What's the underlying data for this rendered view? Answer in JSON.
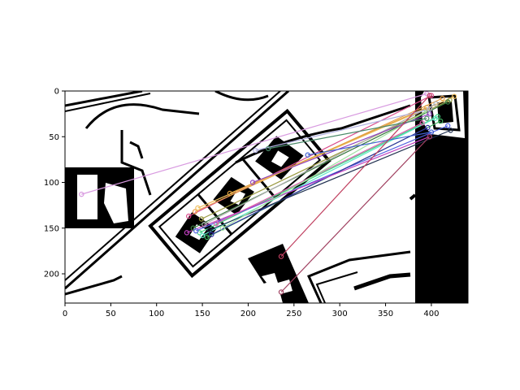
{
  "chart_data": {
    "type": "scatter",
    "title": "",
    "xlabel": "",
    "ylabel": "",
    "xlim": [
      0,
      440
    ],
    "ylim": [
      232,
      0
    ],
    "grid": false,
    "legend": "none",
    "x_ticks": [
      0,
      50,
      100,
      150,
      200,
      250,
      300,
      350,
      400
    ],
    "y_ticks": [
      0,
      50,
      100,
      150,
      200
    ],
    "x_tick_labels": [
      "0",
      "50",
      "100",
      "150",
      "200",
      "250",
      "300",
      "350",
      "400"
    ],
    "y_tick_labels": [
      "0",
      "50",
      "100",
      "150",
      "200"
    ],
    "background_image": "binary black-and-white floor plan segment (left) matched against a small rotated crop (right)",
    "matches": [
      {
        "x1": 18,
        "y1": 113,
        "x2": 395,
        "y2": 3,
        "color": "#d89ae0"
      },
      {
        "x1": 135,
        "y1": 137,
        "x2": 400,
        "y2": 5,
        "color": "#d94c8c"
      },
      {
        "x1": 142,
        "y1": 132,
        "x2": 412,
        "y2": 8,
        "color": "#e7a04a"
      },
      {
        "x1": 145,
        "y1": 128,
        "x2": 425,
        "y2": 6,
        "color": "#f0c060"
      },
      {
        "x1": 149,
        "y1": 140,
        "x2": 420,
        "y2": 10,
        "color": "#9a9a40"
      },
      {
        "x1": 140,
        "y1": 150,
        "x2": 418,
        "y2": 12,
        "color": "#3a7a40"
      },
      {
        "x1": 152,
        "y1": 146,
        "x2": 405,
        "y2": 14,
        "color": "#b0b0b0"
      },
      {
        "x1": 147,
        "y1": 155,
        "x2": 407,
        "y2": 28,
        "color": "#40d080"
      },
      {
        "x1": 150,
        "y1": 158,
        "x2": 404,
        "y2": 30,
        "color": "#60e8c8"
      },
      {
        "x1": 155,
        "y1": 160,
        "x2": 410,
        "y2": 33,
        "color": "#40b060"
      },
      {
        "x1": 143,
        "y1": 153,
        "x2": 418,
        "y2": 38,
        "color": "#5060e0"
      },
      {
        "x1": 160,
        "y1": 157,
        "x2": 396,
        "y2": 40,
        "color": "#3030a0"
      },
      {
        "x1": 158,
        "y1": 152,
        "x2": 421,
        "y2": 43,
        "color": "#203050"
      },
      {
        "x1": 133,
        "y1": 155,
        "x2": 398,
        "y2": 50,
        "color": "#c040c0"
      },
      {
        "x1": 165,
        "y1": 145,
        "x2": 390,
        "y2": 35,
        "color": "#e060b0"
      },
      {
        "x1": 172,
        "y1": 150,
        "x2": 395,
        "y2": 22,
        "color": "#a0e0a0"
      },
      {
        "x1": 180,
        "y1": 112,
        "x2": 395,
        "y2": 18,
        "color": "#e0a040"
      },
      {
        "x1": 205,
        "y1": 100,
        "x2": 398,
        "y2": 25,
        "color": "#9040c0"
      },
      {
        "x1": 208,
        "y1": 65,
        "x2": 398,
        "y2": 20,
        "color": "#b0b0e0"
      },
      {
        "x1": 222,
        "y1": 63,
        "x2": 395,
        "y2": 30,
        "color": "#4a8a6a"
      },
      {
        "x1": 265,
        "y1": 70,
        "x2": 400,
        "y2": 45,
        "color": "#4060d0"
      },
      {
        "x1": 236,
        "y1": 181,
        "x2": 398,
        "y2": 5,
        "color": "#c04060"
      },
      {
        "x1": 236,
        "y1": 220,
        "x2": 398,
        "y2": 50,
        "color": "#a04060"
      }
    ]
  }
}
